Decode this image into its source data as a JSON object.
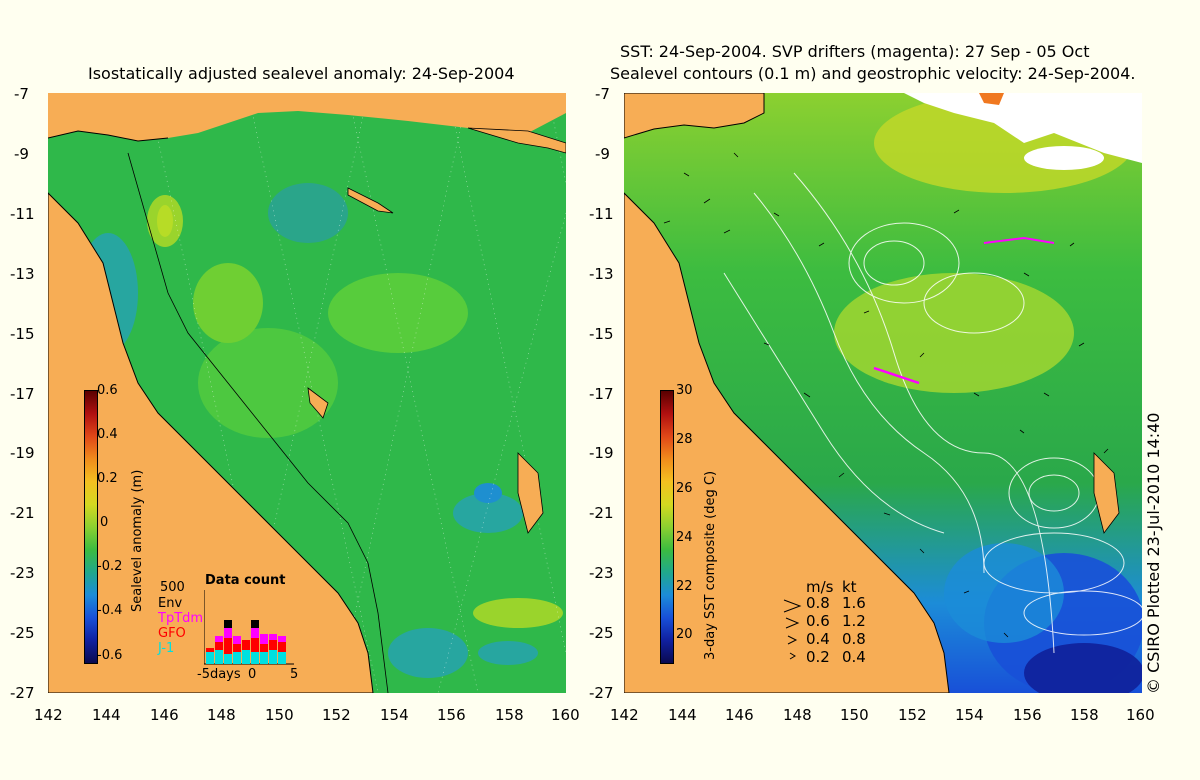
{
  "left_panel": {
    "title": "Isostatically adjusted sealevel anomaly: 24-Sep-2004",
    "colorbar": {
      "label": "Sealevel anomaly (m)",
      "ticks": [
        "0.6",
        "0.4",
        "0.2",
        "0",
        "-0.2",
        "-0.4",
        "-0.6"
      ]
    },
    "data_count": {
      "title": "Data count",
      "max_label": "500",
      "legend": [
        {
          "name": "Env",
          "color": "#000000"
        },
        {
          "name": "TpTdm",
          "color": "#ff00ff"
        },
        {
          "name": "GFO",
          "color": "#ff0000"
        },
        {
          "name": "J-1",
          "color": "#00e0e0"
        }
      ],
      "x_labels": [
        "-5days",
        "0",
        "5"
      ]
    }
  },
  "right_panel": {
    "title_line1": "SST: 24-Sep-2004. SVP drifters (magenta): 27 Sep - 05 Oct",
    "title_line2": "Sealevel contours (0.1 m) and geostrophic velocity: 24-Sep-2004.",
    "colorbar": {
      "label": "3-day SST composite (deg C)",
      "ticks": [
        "30",
        "28",
        "26",
        "24",
        "22",
        "20"
      ]
    },
    "velocity_legend": {
      "header_ms": "m/s",
      "header_kt": "kt",
      "rows": [
        {
          "ms": "0.8",
          "kt": "1.6"
        },
        {
          "ms": "0.6",
          "kt": "1.2"
        },
        {
          "ms": "0.4",
          "kt": "0.8"
        },
        {
          "ms": "0.2",
          "kt": "0.4"
        }
      ]
    }
  },
  "axes": {
    "lat_labels": [
      "-7",
      "-9",
      "-11",
      "-13",
      "-15",
      "-17",
      "-19",
      "-21",
      "-23",
      "-25",
      "-27"
    ],
    "lon_labels": [
      "142",
      "144",
      "146",
      "148",
      "150",
      "152",
      "154",
      "156",
      "158",
      "160"
    ]
  },
  "credit": "© CSIRO Plotted 23-Jul-2010 14:40",
  "colors": {
    "land": "#f7ad55",
    "ocean_sla": "#2fb84a",
    "background": "#fffff0"
  }
}
